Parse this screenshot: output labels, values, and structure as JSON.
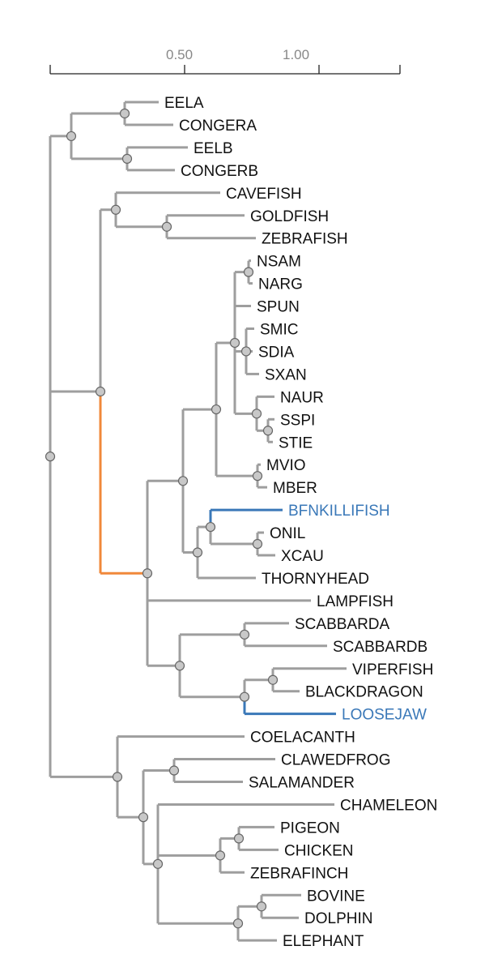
{
  "axis": {
    "ticks": [
      {
        "label": "0.50"
      },
      {
        "label": "1.00"
      }
    ]
  },
  "colors": {
    "branch": "#9e9e9e",
    "orange": "#f0883a",
    "blue": "#3a78b8",
    "node_fill": "#c8c8c8",
    "text": "#111111",
    "highlight_text": "#3a78b8"
  },
  "leaves": [
    {
      "name": "EELA"
    },
    {
      "name": "CONGERA"
    },
    {
      "name": "EELB"
    },
    {
      "name": "CONGERB"
    },
    {
      "name": "CAVEFISH"
    },
    {
      "name": "GOLDFISH"
    },
    {
      "name": "ZEBRAFISH"
    },
    {
      "name": "NSAM"
    },
    {
      "name": "NARG"
    },
    {
      "name": "SPUN"
    },
    {
      "name": "SMIC"
    },
    {
      "name": "SDIA"
    },
    {
      "name": "SXAN"
    },
    {
      "name": "NAUR"
    },
    {
      "name": "SSPI"
    },
    {
      "name": "STIE"
    },
    {
      "name": "MVIO"
    },
    {
      "name": "MBER"
    },
    {
      "name": "BFNKILLIFISH",
      "highlight": "blue"
    },
    {
      "name": "ONIL"
    },
    {
      "name": "XCAU"
    },
    {
      "name": "THORNYHEAD"
    },
    {
      "name": "LAMPFISH"
    },
    {
      "name": "SCABBARDA"
    },
    {
      "name": "SCABBARDB"
    },
    {
      "name": "VIPERFISH"
    },
    {
      "name": "BLACKDRAGON"
    },
    {
      "name": "LOOSEJAW",
      "highlight": "blue"
    },
    {
      "name": "COELACANTH"
    },
    {
      "name": "CLAWEDFROG"
    },
    {
      "name": "SALAMANDER"
    },
    {
      "name": "CHAMELEON"
    },
    {
      "name": "PIGEON"
    },
    {
      "name": "CHICKEN"
    },
    {
      "name": "ZEBRAFINCH"
    },
    {
      "name": "BOVINE"
    },
    {
      "name": "DOLPHIN"
    },
    {
      "name": "ELEPHANT"
    }
  ]
}
